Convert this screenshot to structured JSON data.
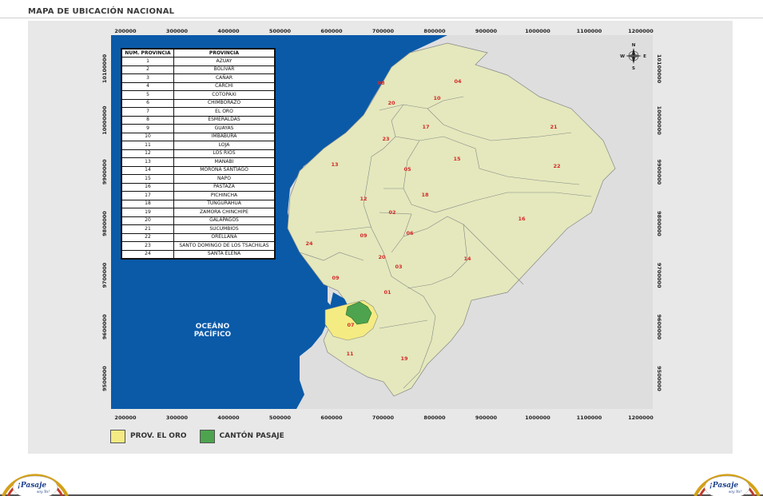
{
  "page": {
    "title": "MAPA DE UBICACIÓN NACIONAL"
  },
  "map": {
    "x_ticks": [
      "200000",
      "300000",
      "400000",
      "500000",
      "600000",
      "700000",
      "800000",
      "900000",
      "1000000",
      "1100000",
      "1200000"
    ],
    "y_ticks": [
      "10100000",
      "10000000",
      "9900000",
      "9800000",
      "9700000",
      "9600000",
      "9500000"
    ],
    "ocean_label": [
      "OCEÁNO",
      "PACÍFICO"
    ],
    "compass": {
      "n": "N",
      "s": "S",
      "e": "E",
      "w": "W"
    },
    "colors": {
      "ocean": "#0a5aa8",
      "land": "#e4e8bc",
      "outside": "#dedede",
      "el_oro": "#f4eb82",
      "pasaje": "#4ea34e",
      "border": "#888888"
    },
    "province_labels": [
      "08",
      "04",
      "10",
      "20",
      "17",
      "21",
      "23",
      "13",
      "05",
      "15",
      "22",
      "18",
      "12",
      "02",
      "16",
      "09",
      "06",
      "24",
      "20",
      "14",
      "03",
      "09",
      "01",
      "07",
      "11",
      "19"
    ]
  },
  "table": {
    "headers": [
      "NUM. PROVINCIA",
      "PROVINCIA"
    ],
    "rows": [
      [
        "1",
        "AZUAY"
      ],
      [
        "2",
        "BOLIVAR"
      ],
      [
        "3",
        "CAÑAR"
      ],
      [
        "4",
        "CARCHI"
      ],
      [
        "5",
        "COTOPAXI"
      ],
      [
        "6",
        "CHIMBORAZO"
      ],
      [
        "7",
        "EL ORO"
      ],
      [
        "8",
        "ESMERALDAS"
      ],
      [
        "9",
        "GUAYAS"
      ],
      [
        "10",
        "IMBABURA"
      ],
      [
        "11",
        "LOJA"
      ],
      [
        "12",
        "LOS RIOS"
      ],
      [
        "13",
        "MANABI"
      ],
      [
        "14",
        "MORONA SANTIAGO"
      ],
      [
        "15",
        "NAPO"
      ],
      [
        "16",
        "PASTAZA"
      ],
      [
        "17",
        "PICHINCHA"
      ],
      [
        "18",
        "TUNGURAHUA"
      ],
      [
        "19",
        "ZAMORA CHINCHIPE"
      ],
      [
        "20",
        "GALAPAGOS"
      ],
      [
        "21",
        "SUCUMBIOS"
      ],
      [
        "22",
        "ORELLANA"
      ],
      [
        "23",
        "SANTO DOMINGO DE LOS TSACHILAS"
      ],
      [
        "24",
        "SANTA ELENA"
      ]
    ]
  },
  "legend": [
    {
      "label": "PROV. EL ORO",
      "color": "#f4eb82"
    },
    {
      "label": "CANTÓN PASAJE",
      "color": "#4ea34e"
    }
  ],
  "logos": {
    "main": "¡Pasaje",
    "sub": "soy Yo!"
  }
}
